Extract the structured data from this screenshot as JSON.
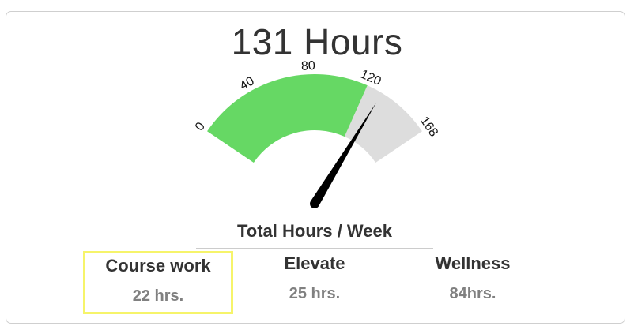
{
  "header": {
    "total_hours_title": "131 Hours"
  },
  "gauge": {
    "min": 0,
    "max": 168,
    "value": 131,
    "tick_labels": [
      "0",
      "40",
      "80",
      "120",
      "168"
    ],
    "tick_values": [
      0,
      40,
      80,
      120,
      168
    ],
    "green_band_end": 120,
    "label": "Total Hours / Week",
    "colors": {
      "green": "#66d864",
      "grey": "#dddddd",
      "needle": "#000000"
    }
  },
  "stats": [
    {
      "label": "Course work",
      "value": "22 hrs.",
      "highlighted": true
    },
    {
      "label": "Elevate",
      "value": "25 hrs.",
      "highlighted": false
    },
    {
      "label": "Wellness",
      "value": "84hrs.",
      "highlighted": false
    }
  ],
  "colors": {
    "highlight_border": "#f6f46a",
    "text_dark": "#333333",
    "text_muted": "#808080"
  }
}
